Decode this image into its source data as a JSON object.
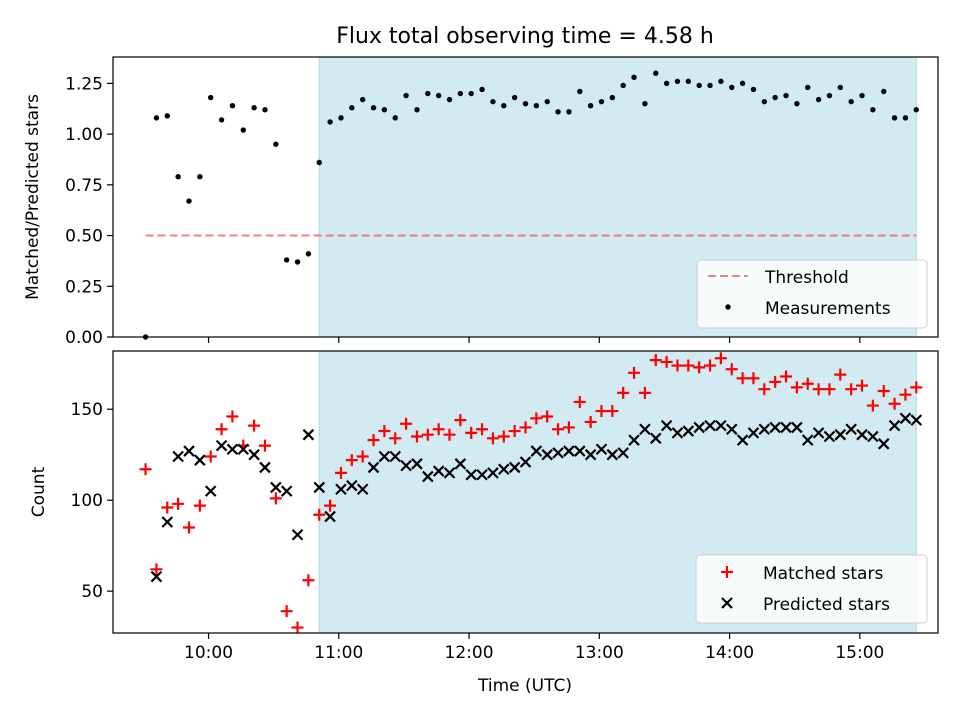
{
  "title": "Flux total observing time = 4.58 h",
  "chart_data": [
    {
      "type": "scatter",
      "ylabel": "Matched/Predicted stars",
      "ylim": [
        0,
        1.38
      ],
      "yticks": [
        0,
        0.25,
        0.5,
        0.75,
        1.0,
        1.25
      ],
      "ytick_labels": [
        "0.00",
        "0.25",
        "0.50",
        "0.75",
        "1.00",
        "1.25"
      ],
      "threshold": {
        "label": "Threshold",
        "value": 0.5,
        "x_start": "09:31",
        "x_end": "15:26",
        "color": "#f08080"
      },
      "highlight": {
        "x_start": "10:51",
        "x_end": "15:26",
        "color": "#add8e6"
      },
      "legend_position": "lower right",
      "series": [
        {
          "name": "Measurements",
          "color": "#000000",
          "marker": "dot",
          "x": [
            "09:31",
            "09:36",
            "09:41",
            "09:46",
            "09:51",
            "09:56",
            "10:01",
            "10:06",
            "10:11",
            "10:16",
            "10:21",
            "10:26",
            "10:31",
            "10:36",
            "10:41",
            "10:46",
            "10:51",
            "10:56",
            "11:01",
            "11:06",
            "11:11",
            "11:16",
            "11:21",
            "11:26",
            "11:31",
            "11:36",
            "11:41",
            "11:46",
            "11:51",
            "11:56",
            "12:01",
            "12:06",
            "12:11",
            "12:16",
            "12:21",
            "12:26",
            "12:31",
            "12:36",
            "12:41",
            "12:46",
            "12:51",
            "12:56",
            "13:01",
            "13:06",
            "13:11",
            "13:16",
            "13:21",
            "13:26",
            "13:31",
            "13:36",
            "13:41",
            "13:46",
            "13:51",
            "13:56",
            "14:01",
            "14:06",
            "14:11",
            "14:16",
            "14:21",
            "14:26",
            "14:31",
            "14:36",
            "14:41",
            "14:46",
            "14:51",
            "14:56",
            "15:01",
            "15:06",
            "15:11",
            "15:16",
            "15:21",
            "15:26"
          ],
          "y": [
            0.0,
            1.08,
            1.09,
            0.79,
            0.67,
            0.79,
            1.18,
            1.07,
            1.14,
            1.02,
            1.13,
            1.12,
            0.95,
            0.38,
            0.37,
            0.41,
            0.86,
            1.06,
            1.08,
            1.13,
            1.17,
            1.13,
            1.12,
            1.08,
            1.19,
            1.12,
            1.2,
            1.19,
            1.17,
            1.2,
            1.2,
            1.22,
            1.16,
            1.14,
            1.18,
            1.15,
            1.14,
            1.16,
            1.11,
            1.11,
            1.21,
            1.14,
            1.16,
            1.18,
            1.24,
            1.28,
            1.15,
            1.3,
            1.25,
            1.26,
            1.26,
            1.24,
            1.24,
            1.26,
            1.23,
            1.25,
            1.22,
            1.16,
            1.18,
            1.19,
            1.15,
            1.23,
            1.17,
            1.19,
            1.23,
            1.16,
            1.19,
            1.12,
            1.21,
            1.08,
            1.08,
            1.12
          ]
        }
      ]
    },
    {
      "type": "scatter",
      "xlabel": "Time (UTC)",
      "ylabel": "Count",
      "ylim": [
        27,
        182
      ],
      "yticks": [
        50,
        100,
        150
      ],
      "ytick_labels": [
        "50",
        "100",
        "150"
      ],
      "xlim": [
        "09:16",
        "15:36"
      ],
      "xticks": [
        "10:00",
        "11:00",
        "12:00",
        "13:00",
        "14:00",
        "15:00"
      ],
      "highlight": {
        "x_start": "10:51",
        "x_end": "15:26",
        "color": "#add8e6"
      },
      "legend_position": "lower right",
      "series": [
        {
          "name": "Matched stars",
          "color": "#ff0000",
          "marker": "plus",
          "x": [
            "09:31",
            "09:36",
            "09:41",
            "09:46",
            "09:51",
            "09:56",
            "10:01",
            "10:06",
            "10:11",
            "10:16",
            "10:21",
            "10:26",
            "10:31",
            "10:36",
            "10:41",
            "10:46",
            "10:51",
            "10:56",
            "11:01",
            "11:06",
            "11:11",
            "11:16",
            "11:21",
            "11:26",
            "11:31",
            "11:36",
            "11:41",
            "11:46",
            "11:51",
            "11:56",
            "12:01",
            "12:06",
            "12:11",
            "12:16",
            "12:21",
            "12:26",
            "12:31",
            "12:36",
            "12:41",
            "12:46",
            "12:51",
            "12:56",
            "13:01",
            "13:06",
            "13:11",
            "13:16",
            "13:21",
            "13:26",
            "13:31",
            "13:36",
            "13:41",
            "13:46",
            "13:51",
            "13:56",
            "14:01",
            "14:06",
            "14:11",
            "14:16",
            "14:21",
            "14:26",
            "14:31",
            "14:36",
            "14:41",
            "14:46",
            "14:51",
            "14:56",
            "15:01",
            "15:06",
            "15:11",
            "15:16",
            "15:21",
            "15:26"
          ],
          "y": [
            117,
            62,
            96,
            98,
            85,
            97,
            124,
            139,
            146,
            130,
            141,
            130,
            101,
            39,
            30,
            56,
            92,
            97,
            115,
            122,
            124,
            133,
            138,
            134,
            142,
            135,
            136,
            139,
            136,
            144,
            137,
            139,
            134,
            135,
            138,
            140,
            145,
            146,
            139,
            140,
            154,
            143,
            149,
            149,
            159,
            170,
            159,
            177,
            176,
            174,
            174,
            173,
            174,
            178,
            172,
            167,
            167,
            161,
            165,
            168,
            162,
            164,
            161,
            161,
            169,
            161,
            163,
            152,
            160,
            153,
            158,
            162
          ]
        },
        {
          "name": "Predicted stars",
          "color": "#000000",
          "marker": "x",
          "x": [
            "09:36",
            "09:41",
            "09:46",
            "09:51",
            "09:56",
            "10:01",
            "10:06",
            "10:11",
            "10:16",
            "10:21",
            "10:26",
            "10:31",
            "10:36",
            "10:41",
            "10:46",
            "10:51",
            "10:56",
            "11:01",
            "11:06",
            "11:11",
            "11:16",
            "11:21",
            "11:26",
            "11:31",
            "11:36",
            "11:41",
            "11:46",
            "11:51",
            "11:56",
            "12:01",
            "12:06",
            "12:11",
            "12:16",
            "12:21",
            "12:26",
            "12:31",
            "12:36",
            "12:41",
            "12:46",
            "12:51",
            "12:56",
            "13:01",
            "13:06",
            "13:11",
            "13:16",
            "13:21",
            "13:26",
            "13:31",
            "13:36",
            "13:41",
            "13:46",
            "13:51",
            "13:56",
            "14:01",
            "14:06",
            "14:11",
            "14:16",
            "14:21",
            "14:26",
            "14:31",
            "14:36",
            "14:41",
            "14:46",
            "14:51",
            "14:56",
            "15:01",
            "15:06",
            "15:11",
            "15:16",
            "15:21",
            "15:26"
          ],
          "y": [
            58,
            88,
            124,
            127,
            122,
            105,
            130,
            128,
            128,
            125,
            118,
            107,
            105,
            81,
            136,
            107,
            91,
            106,
            108,
            106,
            118,
            124,
            124,
            119,
            120,
            113,
            116,
            115,
            120,
            114,
            114,
            115,
            117,
            118,
            121,
            127,
            125,
            126,
            127,
            127,
            125,
            128,
            125,
            126,
            133,
            139,
            134,
            141,
            137,
            138,
            140,
            141,
            141,
            139,
            133,
            137,
            139,
            140,
            140,
            140,
            133,
            137,
            135,
            136,
            139,
            136,
            135,
            131,
            141,
            145,
            144
          ]
        }
      ]
    }
  ]
}
